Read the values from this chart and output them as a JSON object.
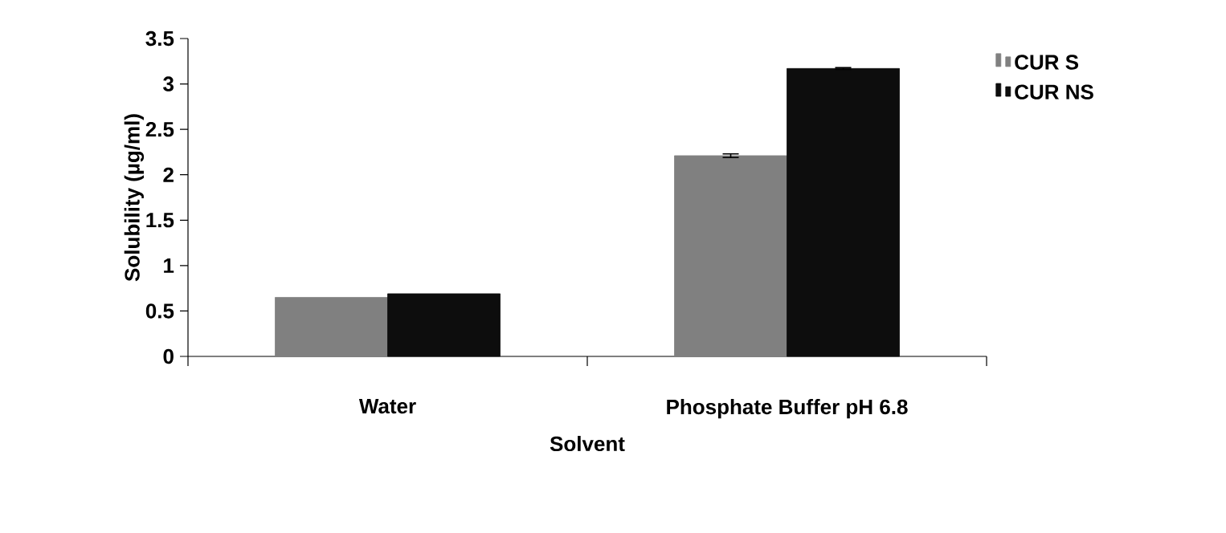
{
  "chart_data": {
    "type": "bar",
    "xlabel": "Solvent",
    "ylabel": "Solubility (µg/ml)",
    "categories": [
      "Water",
      "Phosphate Buffer pH 6.8"
    ],
    "series": [
      {
        "name": "CUR S",
        "color": "#808080",
        "values": [
          0.65,
          2.21
        ],
        "errors": [
          null,
          0.02
        ]
      },
      {
        "name": "CUR NS",
        "color": "#0d0d0d",
        "values": [
          0.69,
          3.17
        ],
        "errors": [
          null,
          0.01
        ]
      }
    ],
    "ylim": [
      0,
      3.5
    ],
    "yticks": [
      0,
      0.5,
      1,
      1.5,
      2,
      2.5,
      3,
      3.5
    ],
    "legend": "top right",
    "grid": false
  }
}
